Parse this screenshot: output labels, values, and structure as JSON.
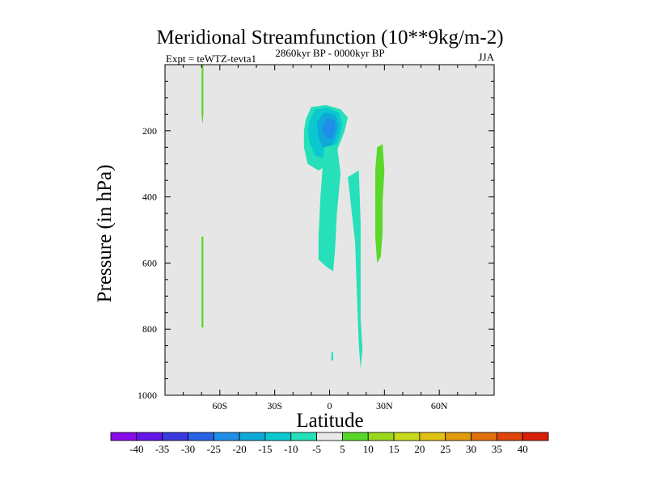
{
  "chart_data": {
    "type": "contour",
    "title": "Meridional Streamfunction (10**9kg/m-2)",
    "subtitle_left": "Expt = teWTZ-tevta1",
    "subtitle_center": "2860kyr BP - 0000kyr BP",
    "subtitle_right": "JJA",
    "xlabel": "Latitude",
    "ylabel": "Pressure (in hPa)",
    "xlim": [
      -90,
      90
    ],
    "ylim": [
      1000,
      0
    ],
    "x_ticks": [
      {
        "value": -60,
        "label": "60S"
      },
      {
        "value": -30,
        "label": "30S"
      },
      {
        "value": 0,
        "label": "0"
      },
      {
        "value": 30,
        "label": "30N"
      },
      {
        "value": 60,
        "label": "60N"
      }
    ],
    "y_ticks": [
      {
        "value": 200,
        "label": "200"
      },
      {
        "value": 400,
        "label": "400"
      },
      {
        "value": 600,
        "label": "600"
      },
      {
        "value": 800,
        "label": "800"
      },
      {
        "value": 1000,
        "label": "1000"
      }
    ],
    "background_color": "#e6e6e6",
    "contour_levels": [
      -40,
      -35,
      -30,
      -25,
      -20,
      -15,
      -10,
      -5,
      5,
      10,
      15,
      20,
      25,
      30,
      35,
      40
    ],
    "colorbar_colors": [
      "#8a0ce8",
      "#6618e6",
      "#3a3ae0",
      "#2a62e6",
      "#1e8ee8",
      "#0faad8",
      "#0bc8d0",
      "#25e0b8",
      "#e8e8e8",
      "#5ad82a",
      "#98d81e",
      "#c8d81a",
      "#e0c010",
      "#e09a0c",
      "#e0700a",
      "#e0440a",
      "#d82008"
    ],
    "regions": [
      {
        "name": "negative-cell-nh-upper-outer",
        "level": -5,
        "color": "#25e0b8",
        "points": [
          [
            -13,
            165
          ],
          [
            -10,
            128
          ],
          [
            -2,
            122
          ],
          [
            6,
            135
          ],
          [
            10,
            160
          ],
          [
            8,
            205
          ],
          [
            4,
            260
          ],
          [
            0,
            300
          ],
          [
            -6,
            320
          ],
          [
            -12,
            300
          ],
          [
            -14,
            250
          ],
          [
            -14,
            200
          ]
        ]
      },
      {
        "name": "negative-cell-nh-upper-mid",
        "level": -10,
        "color": "#0bc8d0",
        "points": [
          [
            -11,
            170
          ],
          [
            -8,
            135
          ],
          [
            -1,
            130
          ],
          [
            5,
            145
          ],
          [
            7,
            180
          ],
          [
            5,
            225
          ],
          [
            2,
            265
          ],
          [
            -3,
            285
          ],
          [
            -8,
            275
          ],
          [
            -11,
            235
          ],
          [
            -12,
            200
          ]
        ]
      },
      {
        "name": "negative-cell-nh-upper-inner",
        "level": -15,
        "color": "#0faad8",
        "points": [
          [
            -7,
            175
          ],
          [
            -3,
            145
          ],
          [
            3,
            150
          ],
          [
            5,
            185
          ],
          [
            3,
            225
          ],
          [
            0,
            255
          ],
          [
            -4,
            250
          ],
          [
            -6,
            220
          ]
        ]
      },
      {
        "name": "negative-cell-nh-upper-core",
        "level": -20,
        "color": "#1e8ee8",
        "points": [
          [
            -4,
            185
          ],
          [
            -1,
            160
          ],
          [
            3,
            170
          ],
          [
            3,
            200
          ],
          [
            1,
            225
          ],
          [
            -2,
            220
          ],
          [
            -4,
            205
          ]
        ]
      },
      {
        "name": "negative-tongue-lower",
        "level": -5,
        "color": "#25e0b8",
        "points": [
          [
            -3,
            250
          ],
          [
            4,
            240
          ],
          [
            6,
            330
          ],
          [
            4,
            450
          ],
          [
            3,
            560
          ],
          [
            2,
            625
          ],
          [
            -2,
            610
          ],
          [
            -6,
            590
          ],
          [
            -6,
            520
          ],
          [
            -5,
            400
          ]
        ]
      },
      {
        "name": "negative-column-15n",
        "level": -5,
        "color": "#25e0b8",
        "points": [
          [
            10,
            340
          ],
          [
            16,
            320
          ],
          [
            17,
            480
          ],
          [
            17,
            600
          ],
          [
            17,
            770
          ],
          [
            18,
            860
          ],
          [
            17,
            920
          ],
          [
            16,
            850
          ],
          [
            15,
            700
          ],
          [
            14,
            540
          ],
          [
            12,
            440
          ],
          [
            11,
            390
          ]
        ]
      },
      {
        "name": "negative-dot-near-equator",
        "level": -5,
        "color": "#25e0b8",
        "points": [
          [
            1,
            870
          ],
          [
            2,
            870
          ],
          [
            2,
            895
          ],
          [
            1,
            895
          ]
        ]
      },
      {
        "name": "positive-band-27n",
        "level": 5,
        "color": "#5ad82a",
        "points": [
          [
            26,
            250
          ],
          [
            29,
            240
          ],
          [
            30,
            320
          ],
          [
            29,
            420
          ],
          [
            29,
            510
          ],
          [
            28,
            580
          ],
          [
            26,
            600
          ],
          [
            25,
            520
          ],
          [
            25,
            400
          ],
          [
            25,
            320
          ]
        ]
      },
      {
        "name": "positive-strip-70s-upper",
        "level": 5,
        "color": "#5ad82a",
        "points": [
          [
            -70,
            0
          ],
          [
            -69,
            0
          ],
          [
            -69,
            150
          ],
          [
            -69.5,
            180
          ],
          [
            -70,
            150
          ]
        ]
      },
      {
        "name": "positive-strip-70s-lower",
        "level": 5,
        "color": "#5ad82a",
        "points": [
          [
            -70,
            520
          ],
          [
            -69,
            520
          ],
          [
            -69,
            650
          ],
          [
            -69,
            795
          ],
          [
            -70,
            795
          ]
        ]
      }
    ]
  }
}
